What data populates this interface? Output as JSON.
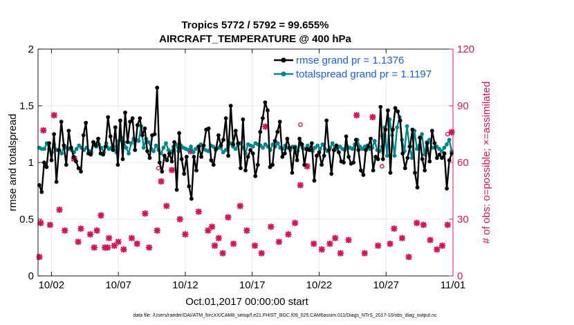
{
  "chart_data": {
    "type": "line",
    "title": "Tropics 5772 / 5792 = 99.655%",
    "subtitle": "AIRCRAFT_TEMPERATURE @ 400 hPa",
    "xlabel": "Oct.01,2017 00:00:00 start",
    "ylabel": "rmse and totalspread",
    "ylabel_right": "# of obs: o=possible; ×=assimilated",
    "footnote": "data file: /Users/raeder/DAI/ATM_forcXX/CAM6_setup/f.e21.FHIST_BGC.f09_025.CAM6assim.011/Diags_NTrS_2017-10/obs_diag_output.nc",
    "x_start_day": 1,
    "x_end_day": 32,
    "x_tick_days": [
      2,
      7,
      12,
      17,
      22,
      27,
      32
    ],
    "x_tick_labels": [
      "10/02",
      "10/07",
      "10/12",
      "10/17",
      "10/22",
      "10/27",
      "11/01"
    ],
    "ylim": [
      0,
      2
    ],
    "y_ticks": [
      0,
      0.5,
      1,
      1.5,
      2
    ],
    "y_tick_labels": [
      "0",
      "0.5",
      "1",
      "1.5",
      "2"
    ],
    "ylim_right": [
      0,
      120
    ],
    "y_ticks_right": [
      0,
      30,
      60,
      90,
      120
    ],
    "y_tick_labels_right": [
      "0",
      "30",
      "60",
      "90",
      "120"
    ],
    "grid": true,
    "legend_position": "top-right",
    "colors": {
      "rmse": "#000000",
      "totalspread": "#00868b",
      "obs": "#d4145a",
      "right_axis": "#d4145a",
      "legend_text": "#1a5fd6",
      "grid": "#e6e6e6"
    },
    "series": [
      {
        "name": "rmse grand pr = 1.1376",
        "color": "#000000",
        "values": [
          0.8,
          0.74,
          1.0,
          0.96,
          1.17,
          1.02,
          1.25,
          0.83,
          1.11,
          1.36,
          1.15,
          0.98,
          1.28,
          1.13,
          1.05,
          1.01,
          0.95,
          0.92,
          1.24,
          1.35,
          1.08,
          1.07,
          1.18,
          1.15,
          1.21,
          1.08,
          1.07,
          1.14,
          1.4,
          1.23,
          1.11,
          1.31,
          0.98,
          1.37,
          1.03,
          1.44,
          1.18,
          1.36,
          1.39,
          1.11,
          1.33,
          1.39,
          1.24,
          1.3,
          1.1,
          1.04,
          1.24,
          1.25,
          1.66,
          1.0,
          0.92,
          1.06,
          1.02,
          1.08,
          1.01,
          1.18,
          0.76,
          1.26,
          1.03,
          0.9,
          1.05,
          0.79,
          0.68,
          1.05,
          0.93,
          1.14,
          1.05,
          1.15,
          1.29,
          1.3,
          1.02,
          0.98,
          1.12,
          1.24,
          1.15,
          1.2,
          1.39,
          1.06,
          1.5,
          1.16,
          1.28,
          1.17,
          0.95,
          1.38,
          0.93,
          1.05,
          1.11,
          1.08,
          0.88,
          0.98,
          1.27,
          1.39,
          1.53,
          1.46,
          0.96,
          0.98,
          1.19,
          1.27,
          1.36,
          1.05,
          1.08,
          1.21,
          1.13,
          0.91,
          1.13,
          1.02,
          1.21,
          1.16,
          0.98,
          1.12,
          1.11,
          1.17,
          0.84,
          1.06,
          1.09,
          0.98,
          1.06,
          1.37,
          1.11,
          0.9,
          1.11,
          1.15,
          1.09,
          1.01,
          1.0,
          1.23,
          1.05,
          0.99,
          1.0,
          1.2,
          1.11,
          0.93,
          0.89,
          1.11,
          1.14,
          1.21,
          0.93,
          1.05,
          1.03,
          1.49,
          1.03,
          1.29,
          1.46,
          0.91,
          1.29,
          1.48,
          1.45,
          1.37,
          1.08,
          0.95,
          1.04,
          1.14,
          1.29,
          0.91,
          0.78,
          1.22,
          1.03,
          0.93,
          1.17,
          1.01,
          1.28,
          1.17,
          1.04,
          1.07,
          1.04,
          1.08,
          0.77,
          1.02,
          1.08
        ]
      },
      {
        "name": "totalspread grand pr = 1.1197",
        "color": "#00868b",
        "values": [
          1.13,
          1.12,
          1.12,
          1.17,
          1.12,
          1.09,
          1.16,
          1.11,
          1.11,
          1.08,
          1.15,
          1.13,
          1.12,
          1.11,
          1.09,
          1.12,
          1.15,
          1.13,
          1.11,
          1.13,
          1.1,
          1.09,
          1.17,
          1.14,
          1.16,
          1.13,
          1.09,
          1.17,
          1.12,
          1.13,
          1.14,
          1.09,
          1.19,
          1.22,
          1.18,
          1.13,
          1.08,
          1.17,
          1.21,
          1.2,
          1.19,
          1.32,
          1.13,
          1.21,
          1.18,
          1.12,
          1.1,
          1.15,
          1.11,
          1.08,
          1.13,
          1.17,
          1.11,
          1.09,
          1.14,
          1.16,
          1.1,
          1.15,
          1.13,
          1.12,
          1.11,
          1.14,
          1.09,
          1.12,
          1.14,
          1.16,
          1.12,
          1.11,
          1.1,
          1.15,
          1.14,
          1.11,
          1.13,
          1.13,
          1.09,
          1.11,
          1.15,
          1.17,
          1.14,
          1.12,
          1.16,
          1.17,
          1.13,
          1.08,
          1.16,
          1.15,
          1.14,
          1.17,
          1.16,
          1.15,
          1.13,
          1.16,
          1.14,
          1.11,
          1.16,
          1.14,
          1.17,
          1.13,
          1.12,
          1.15,
          1.13,
          1.11,
          1.14,
          1.14,
          1.1,
          1.16,
          1.13,
          1.12,
          1.15,
          1.11,
          1.1,
          1.13,
          1.15,
          1.12,
          1.16,
          1.12,
          1.1,
          1.13,
          1.17,
          1.11,
          1.13,
          1.14,
          1.12,
          1.11,
          1.14,
          1.13,
          1.12,
          1.16,
          1.2,
          1.14,
          1.12,
          1.14,
          1.15,
          1.12,
          1.13,
          1.19,
          1.11,
          1.1,
          1.14,
          1.31,
          1.06,
          1.38,
          1.24,
          1.06,
          1.31,
          1.4,
          1.2,
          1.1,
          1.32,
          1.14,
          1.04,
          1.28,
          1.12,
          1.15,
          1.25,
          1.07,
          1.18,
          1.2,
          1.13,
          1.13,
          1.14,
          1.12,
          1.1,
          1.13,
          1.16,
          1.2,
          1.1
        ]
      }
    ],
    "obs_assimilated": {
      "name": "assimilated (×)",
      "x_day": [
        1.1,
        1.2,
        1.4,
        1.9,
        2.2,
        2.6,
        3.0,
        3.7,
        4.0,
        4.2,
        4.9,
        5.2,
        5.4,
        5.7,
        6.0,
        6.2,
        6.3,
        6.7,
        7.0,
        7.4,
        8.0,
        8.4,
        9.0,
        9.3,
        9.9,
        10.2,
        10.6,
        11.0,
        11.6,
        12.0,
        12.4,
        13.0,
        13.7,
        14.0,
        14.2,
        14.5,
        14.8,
        15.2,
        15.6,
        16.1,
        16.6,
        17.2,
        17.7,
        18.0,
        18.4,
        19.0,
        19.7,
        20.2,
        20.6,
        21.1,
        21.6,
        22.2,
        22.8,
        23.2,
        23.6,
        24.2,
        24.8,
        25.4,
        26.0,
        26.4,
        26.8,
        27.3,
        27.6,
        28.2,
        28.7,
        29.3,
        29.8,
        30.3,
        30.8,
        31.2,
        31.6,
        31.9
      ],
      "y_count": [
        10,
        28,
        77,
        27,
        85,
        35,
        24,
        62,
        18,
        25,
        22,
        15,
        24,
        32,
        15,
        15,
        20,
        16,
        18,
        14,
        20,
        17,
        33,
        15,
        24,
        50,
        37,
        56,
        30,
        22,
        66,
        34,
        24,
        26,
        16,
        20,
        12,
        31,
        17,
        37,
        24,
        16,
        12,
        79,
        26,
        18,
        22,
        28,
        48,
        58,
        17,
        14,
        17,
        20,
        12,
        19,
        85,
        12,
        84,
        16,
        74,
        17,
        25,
        20,
        10,
        28,
        27,
        19,
        14,
        16,
        27,
        76
      ]
    },
    "obs_possible": {
      "name": "possible (o)",
      "x_day": [
        10.0,
        20.6,
        26.7,
        31.6
      ],
      "y_count": [
        57,
        80,
        58,
        75
      ]
    }
  }
}
